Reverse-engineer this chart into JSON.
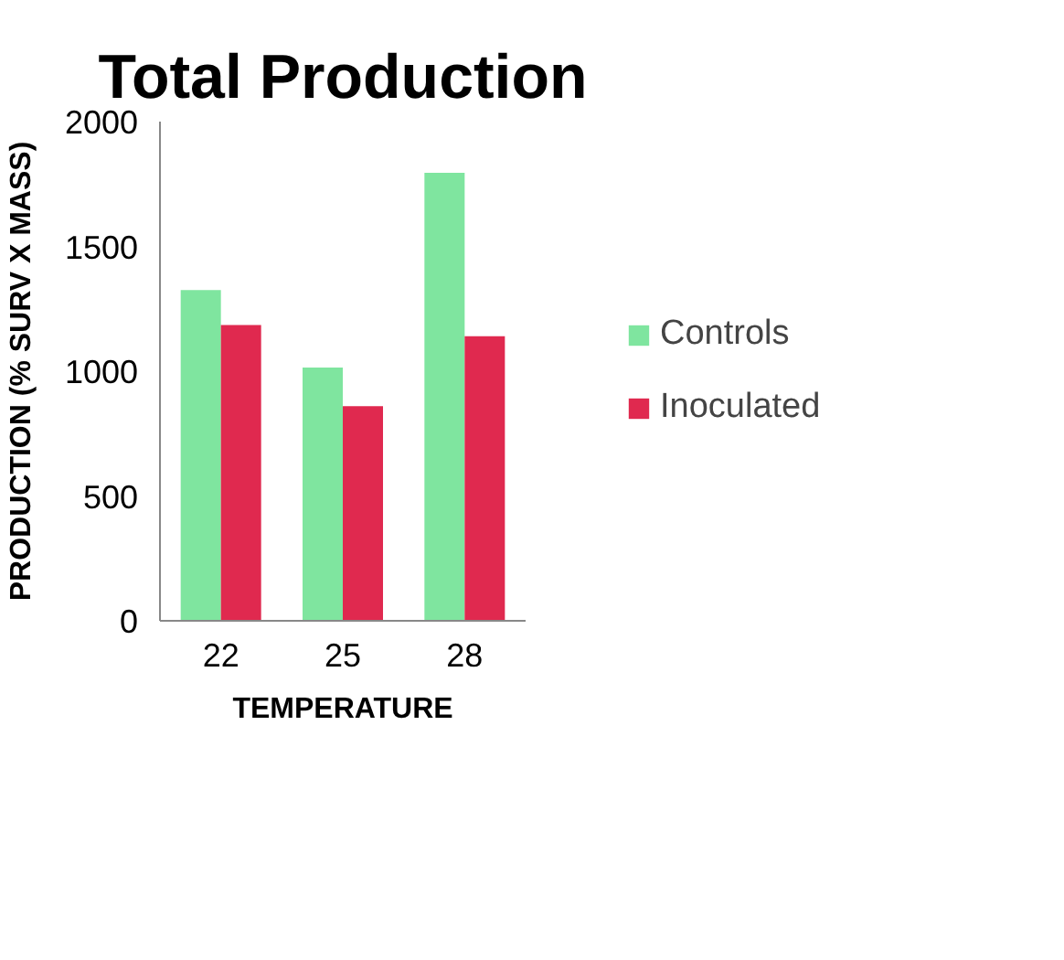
{
  "chart_data": {
    "type": "bar",
    "title": "Total Production",
    "xlabel": "TEMPERATURE",
    "ylabel": "PRODUCTION (% SURV X MASS)",
    "categories": [
      "22",
      "25",
      "28"
    ],
    "series": [
      {
        "name": "Controls",
        "color": "#7fe59f",
        "values": [
          1325,
          1015,
          1795
        ]
      },
      {
        "name": "Inoculated",
        "color": "#e0294f",
        "values": [
          1185,
          860,
          1140
        ]
      }
    ],
    "ylim": [
      0,
      2000
    ],
    "yticks": [
      0,
      500,
      1000,
      1500,
      2000
    ],
    "grid": false,
    "legend": "right"
  }
}
